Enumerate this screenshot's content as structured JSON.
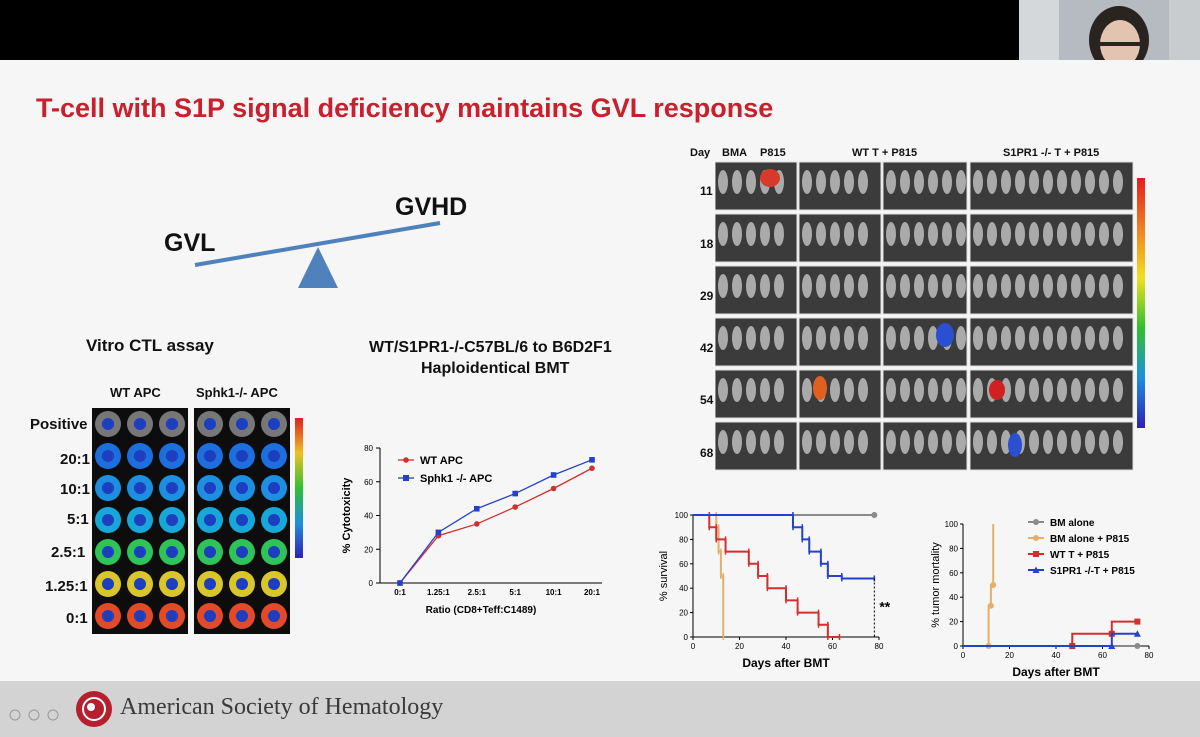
{
  "slide": {
    "title": "T-cell with S1P signal deficiency maintains GVL response",
    "balance": {
      "left": "GVL",
      "right": "GVHD"
    },
    "ctl_title": "Vitro CTL assay",
    "ctl_cols": [
      "WT APC",
      "Sphk1-/- APC"
    ],
    "ctl_rows": [
      "Positive",
      "20:1",
      "10:1",
      "5:1",
      "2.5:1",
      "1.25:1",
      "0:1"
    ],
    "bmt_title_1": "WT/S1PR1-/-C57BL/6 to B6D2F1",
    "bmt_title_2": "Haploidentical BMT",
    "imaging": {
      "day_label": "Day",
      "groups": [
        "BMA",
        "P815",
        "WT T + P815",
        "S1PR1 -/- T + P815"
      ],
      "days": [
        "11",
        "18",
        "29",
        "42",
        "54",
        "68"
      ]
    },
    "footer_org": "American Society of Hematology"
  },
  "chart_data": [
    {
      "type": "line",
      "title": "",
      "xlabel": "Ratio (CD8+Teff:C1489)",
      "ylabel": "% Cytotoxicity",
      "categories": [
        "0:1",
        "1.25:1",
        "2.5:1",
        "5:1",
        "10:1",
        "20:1"
      ],
      "ylim": [
        0,
        80
      ],
      "yticks": [
        0,
        20,
        40,
        60,
        80
      ],
      "legend": "top-left",
      "series": [
        {
          "name": "WT APC",
          "color": "#d32f2f",
          "marker": "circle",
          "values": [
            0,
            28,
            35,
            45,
            56,
            68
          ]
        },
        {
          "name": "Sphk1 -/- APC",
          "color": "#2342c9",
          "marker": "square",
          "values": [
            0,
            30,
            44,
            53,
            64,
            73
          ]
        }
      ]
    },
    {
      "type": "line",
      "title": "",
      "xlabel": "Days after BMT",
      "ylabel": "% survival",
      "xlim": [
        0,
        80
      ],
      "ylim": [
        0,
        100
      ],
      "xticks": [
        0,
        20,
        40,
        60,
        80
      ],
      "yticks": [
        0,
        20,
        40,
        60,
        80,
        100
      ],
      "annotation": "**",
      "series": [
        {
          "name": "BM alone",
          "color": "#8a8a8a",
          "step": [
            [
              0,
              100
            ],
            [
              78,
              100
            ]
          ]
        },
        {
          "name": "BM alone + P815",
          "color": "#e2b06a",
          "step": [
            [
              0,
              100
            ],
            [
              10,
              100
            ],
            [
              10,
              90
            ],
            [
              11,
              90
            ],
            [
              11,
              70
            ],
            [
              12,
              70
            ],
            [
              12,
              50
            ],
            [
              13,
              50
            ],
            [
              13,
              0
            ]
          ]
        },
        {
          "name": "WT T + P815",
          "color": "#d32f2f",
          "step": [
            [
              0,
              100
            ],
            [
              7,
              100
            ],
            [
              7,
              90
            ],
            [
              10,
              90
            ],
            [
              10,
              80
            ],
            [
              14,
              80
            ],
            [
              14,
              70
            ],
            [
              24,
              70
            ],
            [
              24,
              60
            ],
            [
              28,
              60
            ],
            [
              28,
              50
            ],
            [
              32,
              50
            ],
            [
              32,
              40
            ],
            [
              40,
              40
            ],
            [
              40,
              30
            ],
            [
              45,
              30
            ],
            [
              45,
              20
            ],
            [
              54,
              20
            ],
            [
              54,
              10
            ],
            [
              58,
              10
            ],
            [
              58,
              0
            ],
            [
              63,
              0
            ]
          ]
        },
        {
          "name": "S1PR1 -/- T + P815",
          "color": "#2342c9",
          "step": [
            [
              0,
              100
            ],
            [
              43,
              100
            ],
            [
              43,
              90
            ],
            [
              47,
              90
            ],
            [
              47,
              80
            ],
            [
              50,
              80
            ],
            [
              50,
              70
            ],
            [
              55,
              70
            ],
            [
              55,
              60
            ],
            [
              58,
              60
            ],
            [
              58,
              50
            ],
            [
              64,
              50
            ],
            [
              64,
              48
            ],
            [
              78,
              48
            ]
          ]
        }
      ]
    },
    {
      "type": "line",
      "title": "",
      "xlabel": "Days after BMT",
      "ylabel": "% tumor mortality",
      "xlim": [
        0,
        80
      ],
      "ylim": [
        0,
        100
      ],
      "xticks": [
        0,
        20,
        40,
        60,
        80
      ],
      "yticks": [
        0,
        20,
        40,
        60,
        80,
        100
      ],
      "legend": "right",
      "series": [
        {
          "name": "BM alone",
          "color": "#8a8a8a",
          "marker": "circle",
          "step": [
            [
              0,
              0
            ],
            [
              75,
              0
            ]
          ]
        },
        {
          "name": "BM alone + P815",
          "color": "#e2b06a",
          "marker": "circle",
          "step": [
            [
              0,
              0
            ],
            [
              11,
              0
            ],
            [
              11,
              33
            ],
            [
              12,
              33
            ],
            [
              12,
              50
            ],
            [
              13,
              50
            ],
            [
              13,
              100
            ]
          ]
        },
        {
          "name": "WT T + P815",
          "color": "#d32f2f",
          "marker": "square",
          "step": [
            [
              0,
              0
            ],
            [
              47,
              0
            ],
            [
              47,
              10
            ],
            [
              64,
              10
            ],
            [
              64,
              20
            ],
            [
              75,
              20
            ]
          ]
        },
        {
          "name": "S1PR1 -/-T + P815",
          "color": "#2342c9",
          "marker": "triangle",
          "step": [
            [
              0,
              0
            ],
            [
              64,
              0
            ],
            [
              64,
              10
            ],
            [
              75,
              10
            ]
          ]
        }
      ]
    }
  ]
}
